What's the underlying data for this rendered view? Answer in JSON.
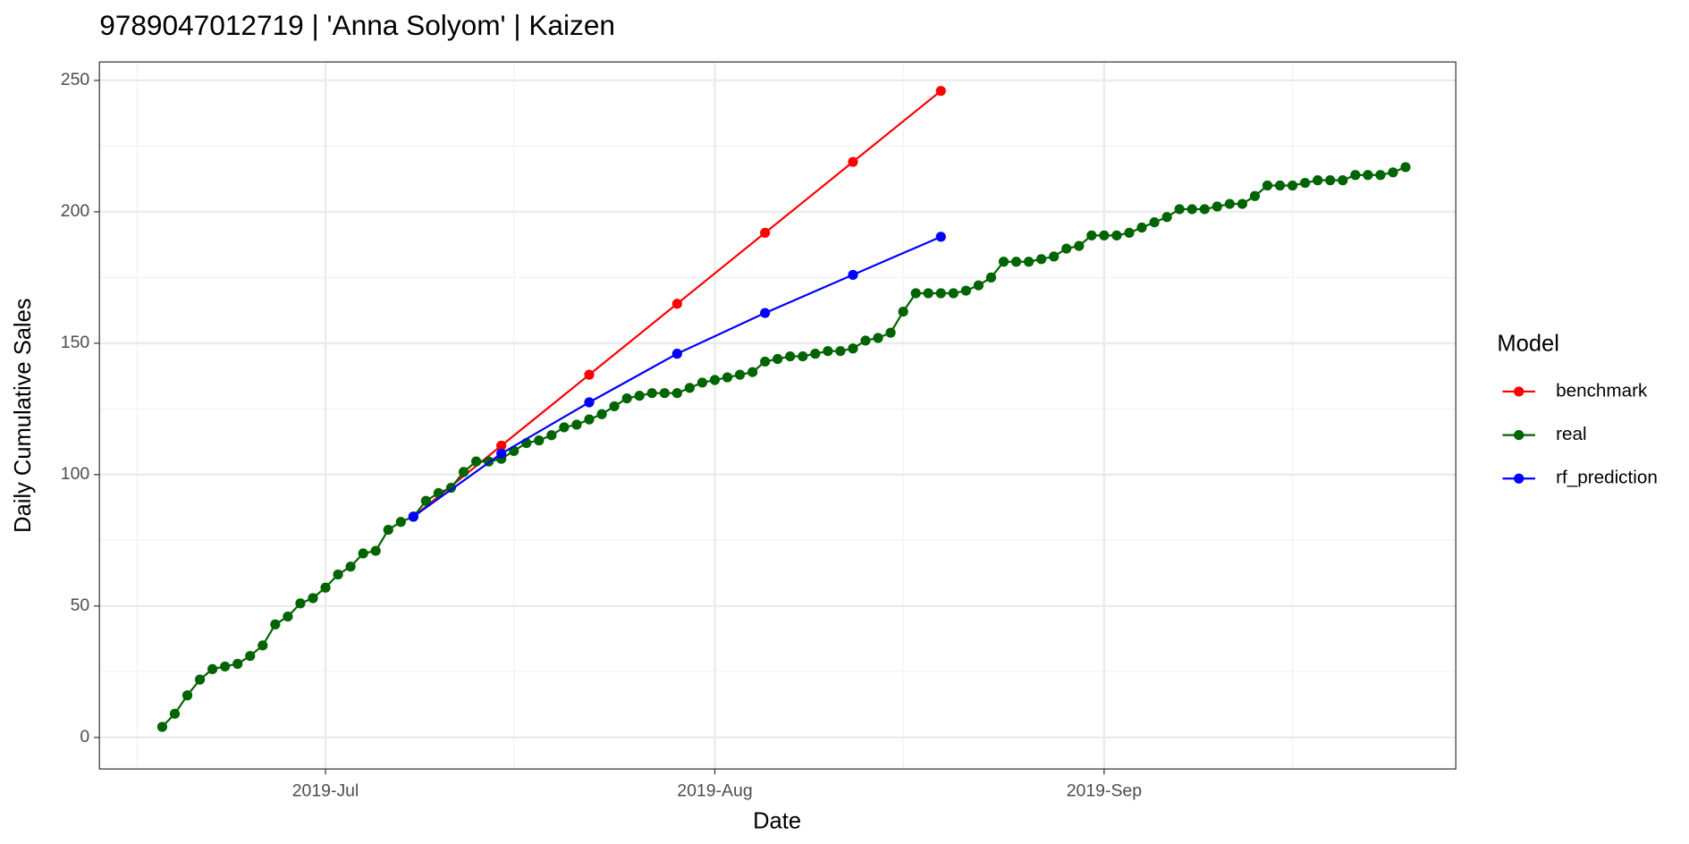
{
  "chart_data": {
    "type": "line",
    "title": "9789047012719 | 'Anna Solyom' | Kaizen",
    "x_label": "Date",
    "y_label": "Daily Cumulative Sales",
    "legend_title": "Model",
    "legend": "right",
    "grid": true,
    "xlim": [
      "2019-06-13",
      "2019-09-29"
    ],
    "ylim": [
      -12,
      257
    ],
    "xticks": [
      {
        "value": "2019-07-01",
        "label": "2019-Jul"
      },
      {
        "value": "2019-08-01",
        "label": "2019-Aug"
      },
      {
        "value": "2019-09-01",
        "label": "2019-Sep"
      }
    ],
    "xminor": [
      "2019-06-16",
      "2019-07-16",
      "2019-08-16",
      "2019-09-16"
    ],
    "yticks": [
      0,
      50,
      100,
      150,
      200,
      250
    ],
    "yminor": [
      25,
      75,
      125,
      175,
      225
    ],
    "series": [
      {
        "name": "benchmark",
        "color": "#ff0000",
        "x": [
          "2019-07-08",
          "2019-07-15",
          "2019-07-22",
          "2019-07-29",
          "2019-08-05",
          "2019-08-12",
          "2019-08-19"
        ],
        "values": [
          84,
          111,
          138,
          165,
          192,
          219,
          246
        ]
      },
      {
        "name": "real",
        "color": "#006400",
        "x": [
          "2019-06-18",
          "2019-06-19",
          "2019-06-20",
          "2019-06-21",
          "2019-06-22",
          "2019-06-23",
          "2019-06-24",
          "2019-06-25",
          "2019-06-26",
          "2019-06-27",
          "2019-06-28",
          "2019-06-29",
          "2019-06-30",
          "2019-07-01",
          "2019-07-02",
          "2019-07-03",
          "2019-07-04",
          "2019-07-05",
          "2019-07-06",
          "2019-07-07",
          "2019-07-08",
          "2019-07-09",
          "2019-07-10",
          "2019-07-11",
          "2019-07-12",
          "2019-07-13",
          "2019-07-14",
          "2019-07-15",
          "2019-07-16",
          "2019-07-17",
          "2019-07-18",
          "2019-07-19",
          "2019-07-20",
          "2019-07-21",
          "2019-07-22",
          "2019-07-23",
          "2019-07-24",
          "2019-07-25",
          "2019-07-26",
          "2019-07-27",
          "2019-07-28",
          "2019-07-29",
          "2019-07-30",
          "2019-07-31",
          "2019-08-01",
          "2019-08-02",
          "2019-08-03",
          "2019-08-04",
          "2019-08-05",
          "2019-08-06",
          "2019-08-07",
          "2019-08-08",
          "2019-08-09",
          "2019-08-10",
          "2019-08-11",
          "2019-08-12",
          "2019-08-13",
          "2019-08-14",
          "2019-08-15",
          "2019-08-16",
          "2019-08-17",
          "2019-08-18",
          "2019-08-19",
          "2019-08-20",
          "2019-08-21",
          "2019-08-22",
          "2019-08-23",
          "2019-08-24",
          "2019-08-25",
          "2019-08-26",
          "2019-08-27",
          "2019-08-28",
          "2019-08-29",
          "2019-08-30",
          "2019-08-31",
          "2019-09-01",
          "2019-09-02",
          "2019-09-03",
          "2019-09-04",
          "2019-09-05",
          "2019-09-06",
          "2019-09-07",
          "2019-09-08",
          "2019-09-09",
          "2019-09-10",
          "2019-09-11",
          "2019-09-12",
          "2019-09-13",
          "2019-09-14",
          "2019-09-15",
          "2019-09-16",
          "2019-09-17",
          "2019-09-18",
          "2019-09-19",
          "2019-09-20",
          "2019-09-21",
          "2019-09-22",
          "2019-09-23",
          "2019-09-24",
          "2019-09-25"
        ],
        "values": [
          4,
          9,
          16,
          22,
          26,
          27,
          28,
          31,
          35,
          43,
          46,
          51,
          53,
          57,
          62,
          65,
          70,
          71,
          79,
          82,
          84,
          90,
          93,
          95,
          101,
          105,
          105,
          106,
          109,
          112,
          113,
          115,
          118,
          119,
          121,
          123,
          126,
          129,
          130,
          131,
          131,
          131,
          133,
          135,
          136,
          137,
          138,
          139,
          143,
          144,
          145,
          145,
          146,
          147,
          147,
          148,
          151,
          152,
          154,
          162,
          169,
          169,
          169,
          169,
          170,
          172,
          175,
          181,
          181,
          181,
          182,
          183,
          186,
          187,
          191,
          191,
          191,
          192,
          194,
          196,
          198,
          201,
          201,
          201,
          202,
          203,
          203,
          206,
          210,
          210,
          210,
          211,
          212,
          212,
          212,
          214,
          214,
          214,
          215,
          217
        ]
      },
      {
        "name": "rf_prediction",
        "color": "#0000ff",
        "x": [
          "2019-07-08",
          "2019-07-15",
          "2019-07-22",
          "2019-07-29",
          "2019-08-05",
          "2019-08-12",
          "2019-08-19"
        ],
        "values": [
          84,
          108,
          127.5,
          146,
          161.5,
          176,
          190.5
        ]
      }
    ]
  }
}
